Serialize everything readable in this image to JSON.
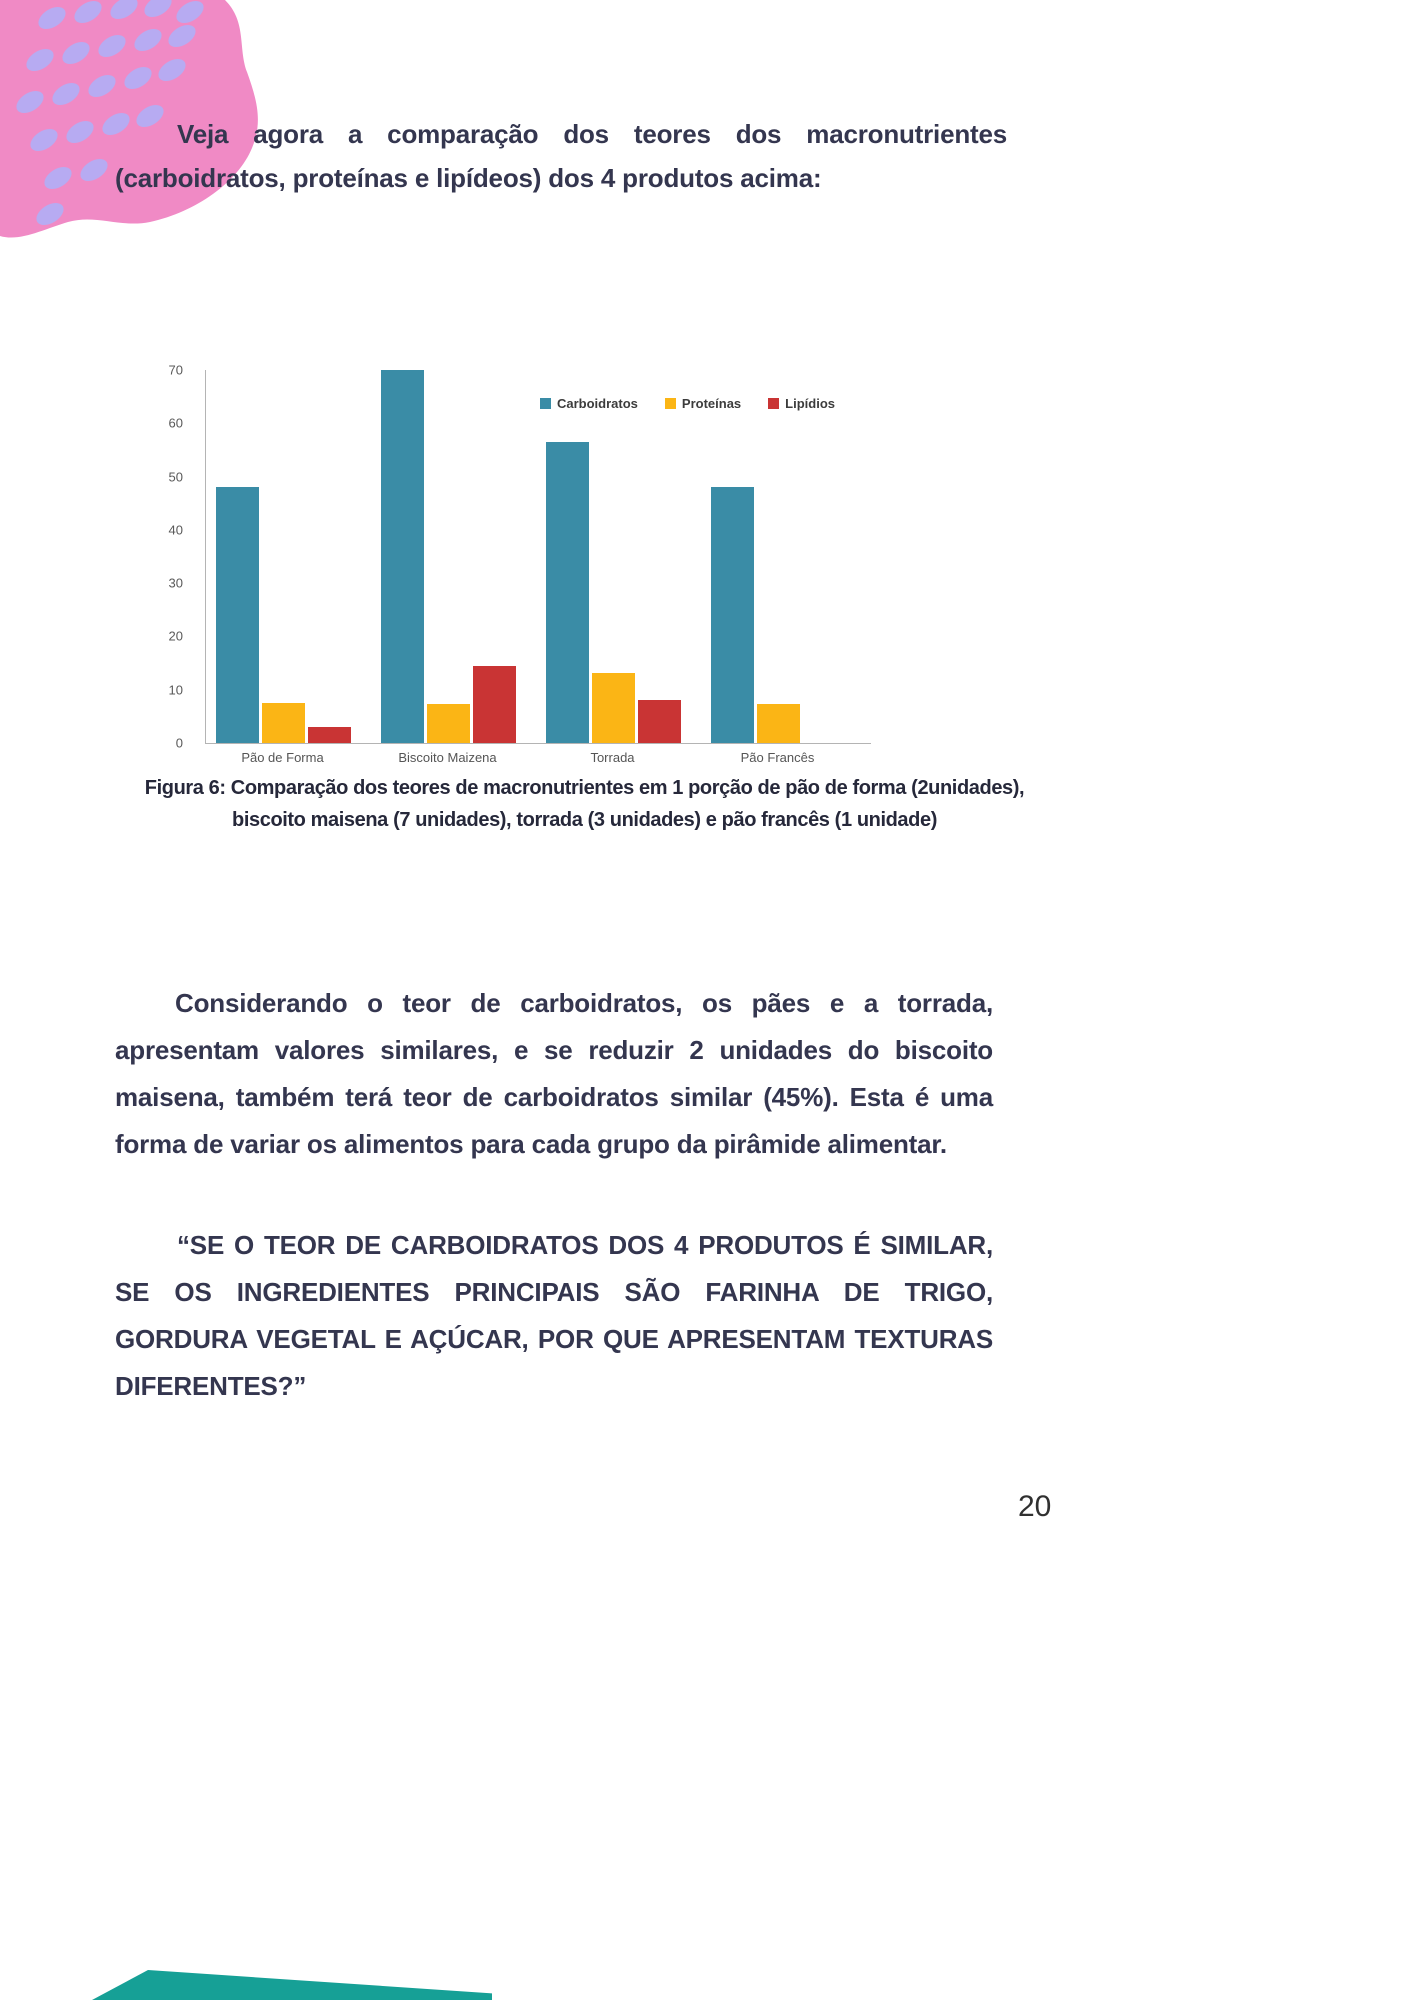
{
  "page": {
    "intro": "Veja agora a comparação dos teores dos macronutrientes (carboidratos, proteínas e lipídeos) dos 4 produtos acima:",
    "caption": "Figura 6: Comparação dos teores de macronutrientes em 1 porção de pão de forma (2unidades), biscoito maisena (7 unidades), torrada (3 unidades) e pão francês (1 unidade)",
    "paragraph": "Considerando o teor de carboidratos, os pães e a torrada, apresentam valores similares, e se reduzir 2 unidades do biscoito maisena, também terá teor de carboidratos similar (45%). Esta é uma forma de variar os alimentos para cada grupo da pirâmide alimentar.",
    "quote": "“SE O TEOR DE CARBOIDRATOS DOS 4 PRODUTOS É SIMILAR, SE OS INGREDIENTES PRINCIPAIS SÃO FARINHA DE TRIGO, GORDURA VEGETAL E AÇÚCAR, POR QUE APRESENTAM TEXTURAS DIFERENTES?”",
    "page_number": "20"
  },
  "colors": {
    "text": "#34364f",
    "pink_blob": "#f08ac5",
    "lavender_dots": "#b7abf2",
    "teal_corner": "#16a096"
  },
  "chart_data": {
    "type": "bar",
    "categories": [
      "Pão de Forma",
      "Biscoito Maizena",
      "Torrada",
      "Pão Francês"
    ],
    "series": [
      {
        "name": "Carboidratos",
        "color": "#3a8ca6",
        "values": [
          48,
          70,
          56.5,
          48
        ]
      },
      {
        "name": "Proteínas",
        "color": "#fbb515",
        "values": [
          7.5,
          7.3,
          13.2,
          7.3
        ]
      },
      {
        "name": "Lipídios",
        "color": "#c93434",
        "values": [
          3,
          14.5,
          8,
          0
        ]
      }
    ],
    "title": "",
    "xlabel": "",
    "ylabel": "",
    "ylim": [
      0,
      70
    ],
    "yticks": [
      0,
      10,
      20,
      30,
      40,
      50,
      60,
      70
    ],
    "grid": false,
    "legend_position": "top-right"
  }
}
